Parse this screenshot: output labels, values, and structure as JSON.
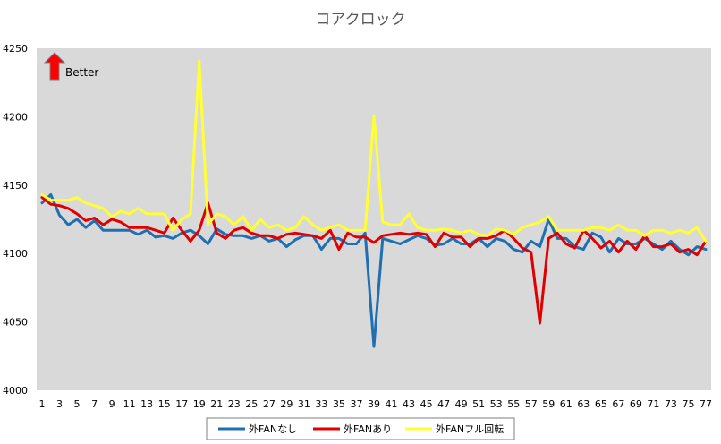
{
  "chart_data": {
    "type": "line",
    "title": "コアクロック",
    "xlabel": "",
    "ylabel": "",
    "ylim": [
      4000,
      4250
    ],
    "yticks": [
      4000,
      4050,
      4100,
      4150,
      4200,
      4250
    ],
    "xlim": [
      1,
      77
    ],
    "xtick_labels": [
      1,
      3,
      5,
      7,
      9,
      11,
      13,
      15,
      17,
      19,
      21,
      23,
      25,
      27,
      29,
      31,
      33,
      35,
      37,
      39,
      41,
      43,
      45,
      47,
      49,
      51,
      53,
      55,
      57,
      59,
      61,
      63,
      65,
      67,
      69,
      71,
      73,
      75,
      77
    ],
    "plot_background": "#d9d9d9",
    "grid": false,
    "legend_position": "bottom",
    "annotation": {
      "text": "Better",
      "arrow_color": "#ff0000"
    },
    "series": [
      {
        "name": "外FANなし",
        "color": "#1f6fb3",
        "x": [
          1,
          2,
          3,
          4,
          5,
          6,
          7,
          8,
          9,
          10,
          11,
          12,
          13,
          14,
          15,
          16,
          17,
          18,
          19,
          20,
          21,
          22,
          23,
          24,
          25,
          26,
          27,
          28,
          29,
          30,
          31,
          32,
          33,
          34,
          35,
          36,
          37,
          38,
          39,
          40,
          41,
          42,
          43,
          44,
          45,
          46,
          47,
          48,
          49,
          50,
          51,
          52,
          53,
          54,
          55,
          56,
          57,
          58,
          59,
          60,
          61,
          62,
          63,
          64,
          65,
          66,
          67,
          68,
          69,
          70,
          71,
          72,
          73,
          74,
          75,
          76,
          77
        ],
        "values": [
          4137,
          4143,
          4128,
          4121,
          4125,
          4119,
          4124,
          4117,
          4117,
          4117,
          4117,
          4114,
          4117,
          4112,
          4113,
          4111,
          4115,
          4117,
          4113,
          4107,
          4118,
          4114,
          4113,
          4113,
          4111,
          4113,
          4109,
          4111,
          4105,
          4110,
          4113,
          4113,
          4103,
          4111,
          4111,
          4107,
          4107,
          4115,
          4032,
          4111,
          4109,
          4107,
          4110,
          4113,
          4111,
          4106,
          4107,
          4111,
          4107,
          4107,
          4111,
          4105,
          4111,
          4109,
          4103,
          4101,
          4109,
          4105,
          4125,
          4111,
          4111,
          4105,
          4103,
          4115,
          4112,
          4101,
          4111,
          4107,
          4107,
          4111,
          4107,
          4103,
          4109,
          4103,
          4099,
          4105,
          4103
        ]
      },
      {
        "name": "外FANあり",
        "color": "#e00000",
        "x": [
          1,
          2,
          3,
          4,
          5,
          6,
          7,
          8,
          9,
          10,
          11,
          12,
          13,
          14,
          15,
          16,
          17,
          18,
          19,
          20,
          21,
          22,
          23,
          24,
          25,
          26,
          27,
          28,
          29,
          30,
          31,
          32,
          33,
          34,
          35,
          36,
          37,
          38,
          39,
          40,
          41,
          42,
          43,
          44,
          45,
          46,
          47,
          48,
          49,
          50,
          51,
          52,
          53,
          54,
          55,
          56,
          57,
          58,
          59,
          60,
          61,
          62,
          63,
          64,
          65,
          66,
          67,
          68,
          69,
          70,
          71,
          72,
          73,
          74,
          75,
          76,
          77
        ],
        "values": [
          4141,
          4136,
          4135,
          4133,
          4129,
          4124,
          4126,
          4121,
          4125,
          4123,
          4119,
          4119,
          4119,
          4117,
          4115,
          4126,
          4117,
          4109,
          4117,
          4137,
          4115,
          4111,
          4117,
          4119,
          4115,
          4113,
          4113,
          4111,
          4114,
          4115,
          4114,
          4113,
          4111,
          4117,
          4103,
          4115,
          4112,
          4112,
          4108,
          4113,
          4114,
          4115,
          4114,
          4115,
          4114,
          4105,
          4115,
          4112,
          4112,
          4105,
          4111,
          4111,
          4113,
          4117,
          4111,
          4104,
          4101,
          4049,
          4111,
          4115,
          4107,
          4104,
          4117,
          4111,
          4104,
          4109,
          4101,
          4109,
          4103,
          4113,
          4105,
          4105,
          4107,
          4101,
          4103,
          4099,
          4109
        ]
      },
      {
        "name": "外FANフル回転",
        "color": "#ffff33",
        "x": [
          1,
          2,
          3,
          4,
          5,
          6,
          7,
          8,
          9,
          10,
          11,
          12,
          13,
          14,
          15,
          16,
          17,
          18,
          19,
          20,
          21,
          22,
          23,
          24,
          25,
          26,
          27,
          28,
          29,
          30,
          31,
          32,
          33,
          34,
          35,
          36,
          37,
          38,
          39,
          40,
          41,
          42,
          43,
          44,
          45,
          46,
          47,
          48,
          49,
          50,
          51,
          52,
          53,
          54,
          55,
          56,
          57,
          58,
          59,
          60,
          61,
          62,
          63,
          64,
          65,
          66,
          67,
          68,
          69,
          70,
          71,
          72,
          73,
          74,
          75,
          76,
          77
        ],
        "values": [
          4143,
          4139,
          4139,
          4139,
          4141,
          4137,
          4135,
          4133,
          4127,
          4131,
          4129,
          4133,
          4129,
          4129,
          4129,
          4117,
          4125,
          4129,
          4241,
          4121,
          4129,
          4127,
          4121,
          4127,
          4117,
          4125,
          4119,
          4121,
          4117,
          4119,
          4127,
          4121,
          4117,
          4119,
          4121,
          4117,
          4117,
          4117,
          4201,
          4123,
          4121,
          4121,
          4129,
          4119,
          4117,
          4117,
          4118,
          4117,
          4115,
          4117,
          4114,
          4113,
          4118,
          4117,
          4114,
          4119,
          4121,
          4123,
          4127,
          4117,
          4117,
          4117,
          4117,
          4119,
          4119,
          4117,
          4121,
          4117,
          4117,
          4113,
          4117,
          4117,
          4115,
          4117,
          4115,
          4119,
          4109
        ]
      }
    ]
  }
}
